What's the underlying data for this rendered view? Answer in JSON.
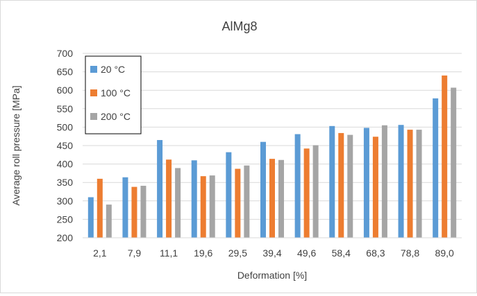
{
  "chart_data": {
    "type": "bar",
    "title": "AlMg8",
    "xlabel": "Deformation [%]",
    "ylabel": "Average roll pressure [MPa]",
    "ylim": [
      200,
      700
    ],
    "yticks": [
      200,
      250,
      300,
      350,
      400,
      450,
      500,
      550,
      600,
      650,
      700
    ],
    "categories": [
      "2,1",
      "7,9",
      "11,1",
      "19,6",
      "29,5",
      "39,4",
      "49,6",
      "58,4",
      "68,3",
      "78,8",
      "89,0"
    ],
    "grid": true,
    "legend_position": "top-left",
    "series": [
      {
        "name": "20 °C",
        "color": "#5b9bd5",
        "values": [
          310,
          364,
          465,
          410,
          432,
          460,
          481,
          503,
          498,
          506,
          578
        ]
      },
      {
        "name": "100 °C",
        "color": "#ed7d31",
        "values": [
          360,
          338,
          412,
          367,
          387,
          414,
          442,
          484,
          474,
          493,
          640
        ]
      },
      {
        "name": "200 °C",
        "color": "#a5a5a5",
        "values": [
          290,
          341,
          389,
          369,
          396,
          411,
          451,
          479,
          505,
          493,
          607
        ]
      }
    ]
  }
}
